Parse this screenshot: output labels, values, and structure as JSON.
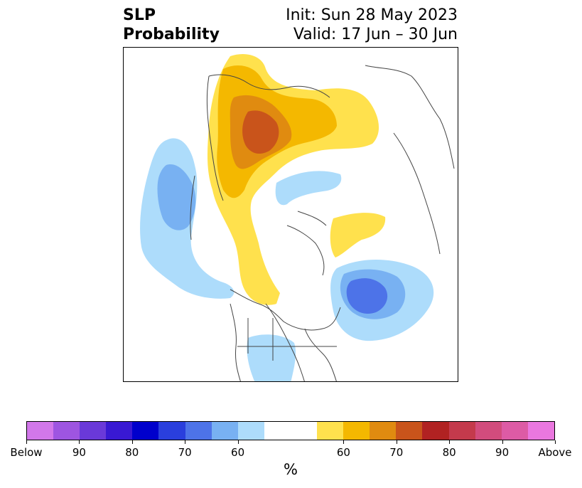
{
  "title": {
    "left_line1": "SLP",
    "left_line2": "Probability",
    "init": "Init: Sun 28 May 2023",
    "valid": "Valid: 17 Jun – 30 Jun"
  },
  "colorbar": {
    "unit": "%",
    "colors": [
      "#d277ea",
      "#9e55e1",
      "#6a39d9",
      "#3919d3",
      "#0000cc",
      "#2a3fdd",
      "#4d73e8",
      "#78b1f2",
      "#addcfb",
      "#ffffff",
      "#ffe14d",
      "#f4b800",
      "#e08b10",
      "#c9541b",
      "#b12222",
      "#c43a4c",
      "#d24c7d",
      "#dd5ba5",
      "#ea77df"
    ],
    "tick_labels": [
      "Below",
      "90",
      "80",
      "70",
      "60",
      "60",
      "70",
      "80",
      "90",
      "Above"
    ]
  },
  "map_colors": {
    "above_60": "#ffe14d",
    "above_65": "#f4b800",
    "above_70": "#e08b10",
    "above_75": "#c9541b",
    "below_60": "#addcfb",
    "below_65": "#78b1f2",
    "below_70": "#4d73e8",
    "coastline": "#444444"
  }
}
